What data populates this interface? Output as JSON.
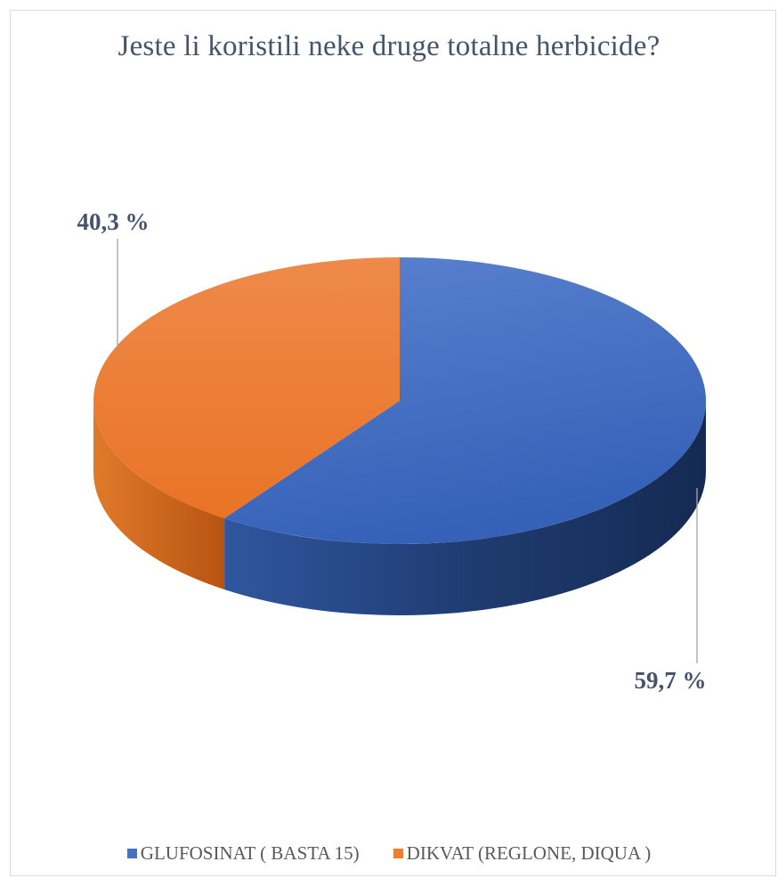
{
  "chart_data": {
    "type": "pie",
    "title": "Jeste li koristili neke druge totalne herbicide?",
    "style": "3d",
    "slices": [
      {
        "name": "GLUFOSINAT ( BASTA 15)",
        "value": 59.7,
        "label": "59,7 %",
        "color": "#4472c4"
      },
      {
        "name": "DIKVAT (REGLONE, DIQUA )",
        "value": 40.3,
        "label": "40,3 %",
        "color": "#ed7d31"
      }
    ],
    "legend_position": "bottom"
  }
}
